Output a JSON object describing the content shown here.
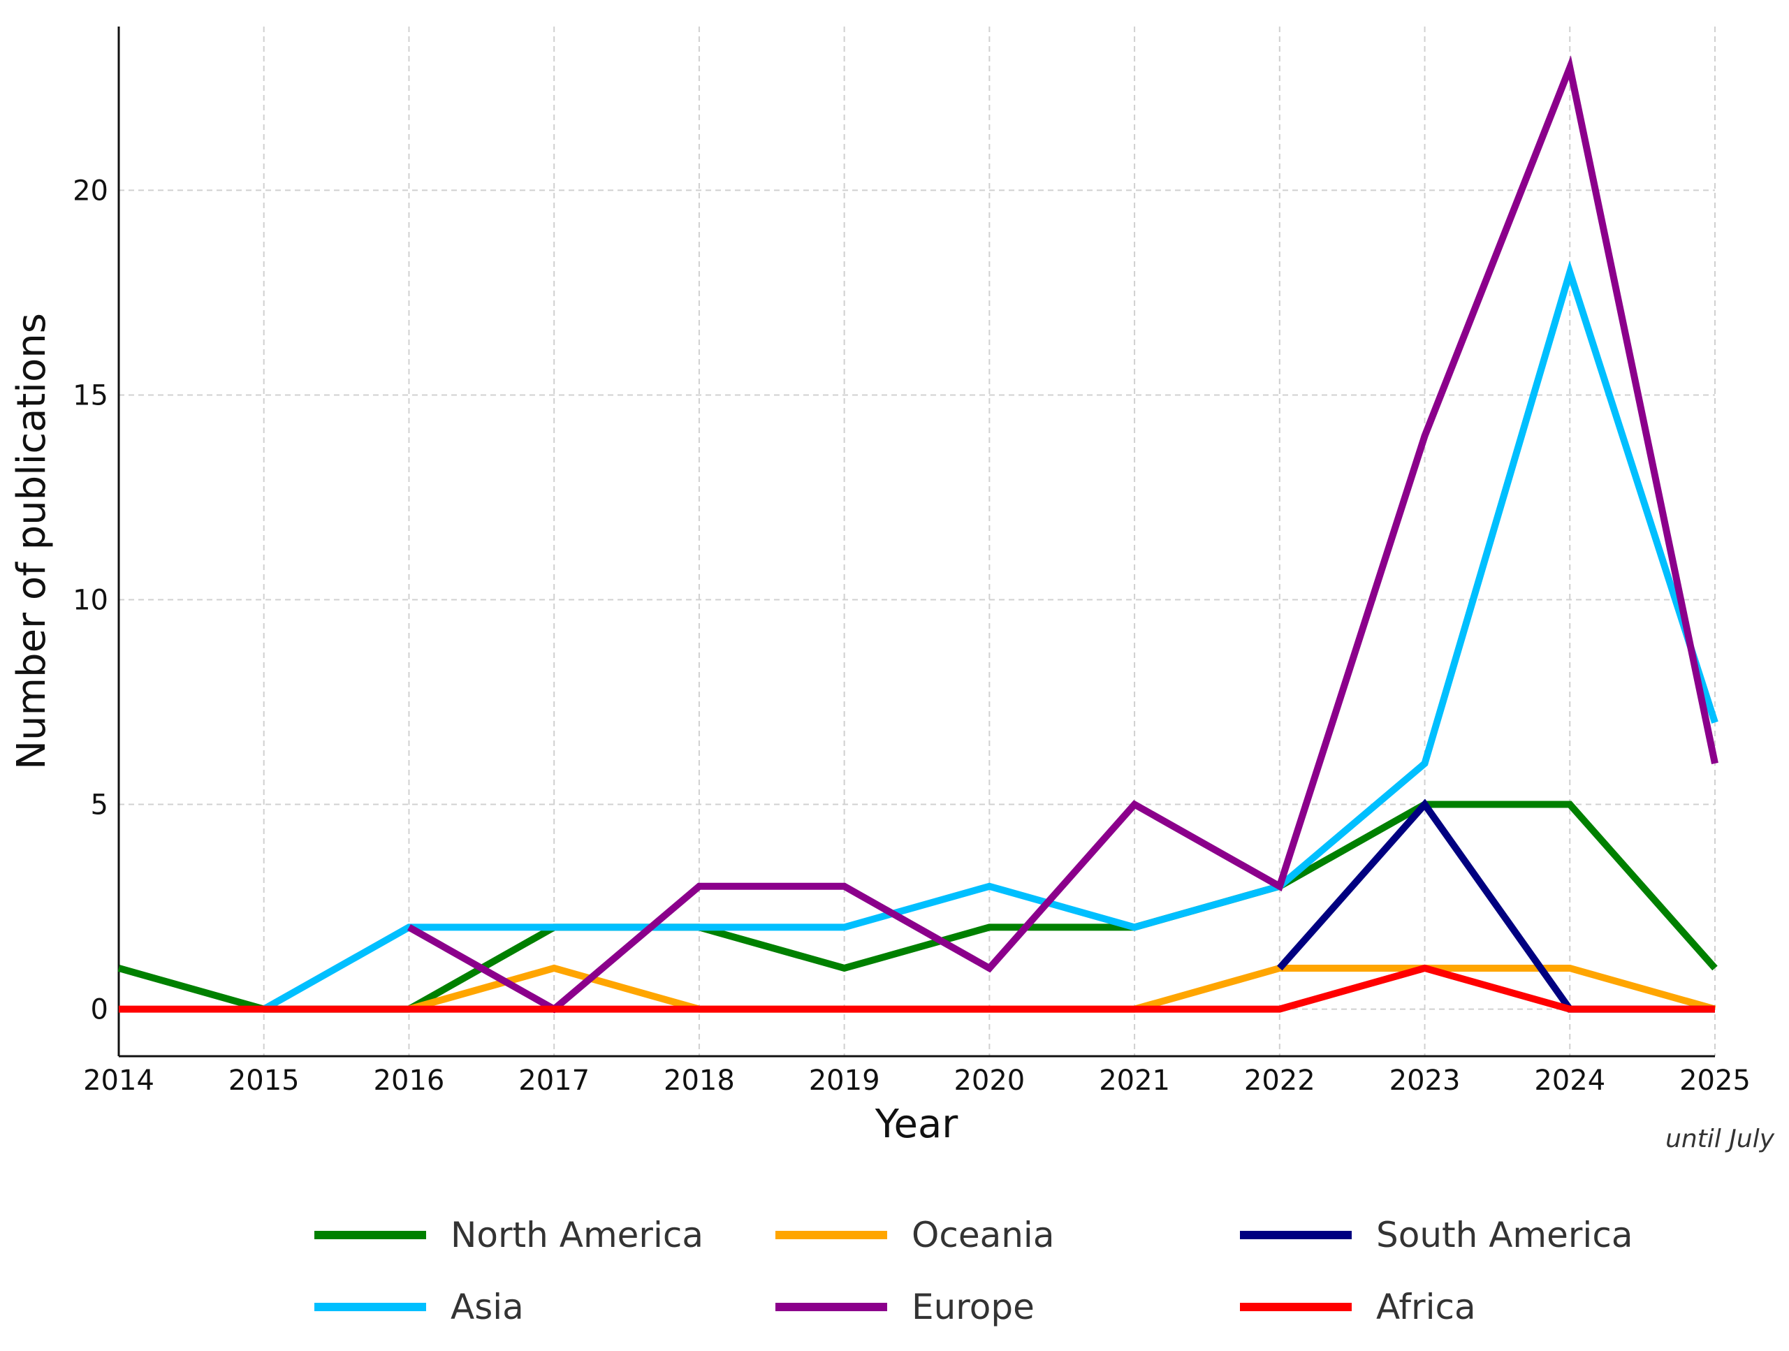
{
  "chart_data": {
    "type": "line",
    "title": "",
    "xlabel": "Year",
    "ylabel": "Number of publications",
    "x_note": "until July",
    "x": [
      "2014",
      "2015",
      "2016",
      "2017",
      "2018",
      "2019",
      "2020",
      "2021",
      "2022",
      "2023",
      "2024",
      "2025"
    ],
    "yticks": [
      0,
      5,
      10,
      15,
      20
    ],
    "ylim": [
      -1.15,
      24
    ],
    "xlim": [
      2014,
      2025
    ],
    "grid": true,
    "legend_position": "bottom",
    "series": [
      {
        "name": "North America",
        "color": "#008000",
        "values": [
          1,
          0,
          0,
          2,
          2,
          1,
          2,
          2,
          3,
          5,
          5,
          1
        ]
      },
      {
        "name": "Asia",
        "color": "#00BFFF",
        "values": [
          null,
          0,
          2,
          2,
          2,
          2,
          3,
          2,
          3,
          6,
          18,
          7
        ]
      },
      {
        "name": "Oceania",
        "color": "#FFA500",
        "values": [
          null,
          null,
          0,
          1,
          0,
          0,
          0,
          0,
          1,
          1,
          1,
          0
        ]
      },
      {
        "name": "Europe",
        "color": "#8B008B",
        "values": [
          null,
          null,
          2,
          0,
          3,
          3,
          1,
          5,
          3,
          14,
          23,
          6
        ]
      },
      {
        "name": "South America",
        "color": "#000080",
        "values": [
          null,
          null,
          null,
          null,
          null,
          null,
          null,
          null,
          1,
          5,
          0,
          0
        ]
      },
      {
        "name": "Africa",
        "color": "#FF0000",
        "values": [
          0,
          0,
          0,
          0,
          0,
          0,
          0,
          0,
          0,
          1,
          0,
          0
        ]
      }
    ],
    "legend_order": [
      "North America",
      "Asia",
      "Oceania",
      "Europe",
      "South America",
      "Africa"
    ]
  }
}
